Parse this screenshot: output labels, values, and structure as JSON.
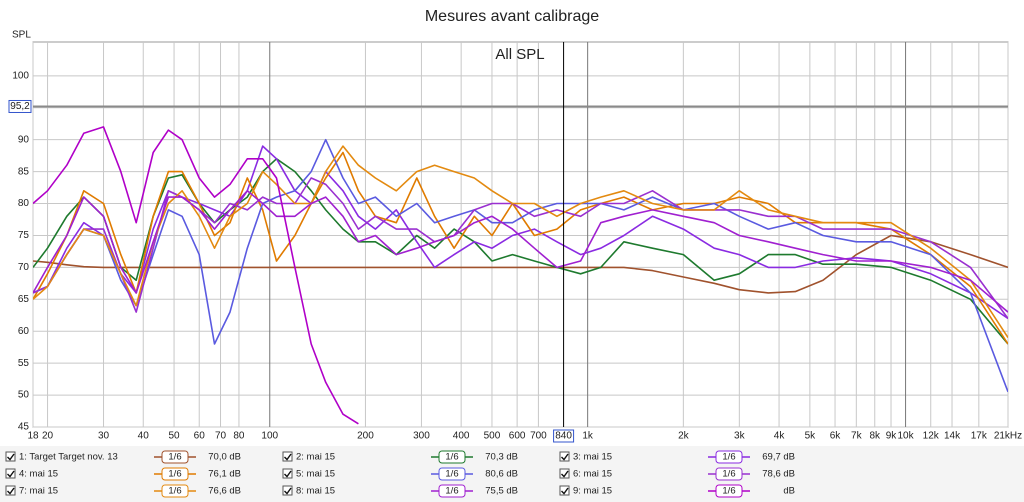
{
  "chart_data": {
    "type": "line",
    "title": "Mesures avant calibrage",
    "y_label": "SPL",
    "annotation": "All SPL",
    "log_x": true,
    "grid": true,
    "xlim": [
      18,
      21000
    ],
    "ylim": [
      45,
      105.3
    ],
    "xticks": [
      18,
      20,
      30,
      40,
      50,
      60,
      70,
      80,
      100,
      200,
      300,
      400,
      500,
      600,
      700,
      {
        "value": 1000,
        "label": "1k"
      },
      {
        "value": 2000,
        "label": "2k"
      },
      {
        "value": 3000,
        "label": "3k"
      },
      {
        "value": 4000,
        "label": "4k"
      },
      {
        "value": 5000,
        "label": "5k"
      },
      {
        "value": 6000,
        "label": "6k"
      },
      {
        "value": 7000,
        "label": "7k"
      },
      {
        "value": 8000,
        "label": "8k"
      },
      {
        "value": 9000,
        "label": "9k"
      },
      {
        "value": 10000,
        "label": "10k"
      },
      {
        "value": 12000,
        "label": "12k"
      },
      {
        "value": 14000,
        "label": "14k"
      },
      {
        "value": 17000,
        "label": "17k"
      },
      {
        "value": 21000,
        "label": "21kHz"
      }
    ],
    "yticks": [
      45,
      50,
      55,
      60,
      65,
      70,
      75,
      80,
      85,
      90,
      95,
      100
    ],
    "cursor_x": {
      "value": 840,
      "label": "840"
    },
    "cursor_y": {
      "value": 95.2,
      "label": "95,2"
    },
    "x": [
      18,
      20,
      23,
      26,
      30,
      34,
      38,
      43,
      48,
      53,
      60,
      67,
      75,
      85,
      95,
      105,
      120,
      135,
      150,
      170,
      190,
      215,
      250,
      290,
      330,
      380,
      440,
      500,
      580,
      680,
      800,
      950,
      1100,
      1300,
      1600,
      2000,
      2500,
      3000,
      3700,
      4500,
      5500,
      7000,
      9000,
      12000,
      16000,
      21000
    ],
    "series": [
      {
        "name": "1: Target Target nov. 13",
        "color": "#a0522d",
        "smoothing": "1/6",
        "level": "70,0 dB",
        "values": [
          71,
          70.8,
          70.4,
          70.1,
          70,
          70,
          70,
          70,
          70,
          70,
          70,
          70,
          70,
          70,
          70,
          70,
          70,
          70,
          70,
          70,
          70,
          70,
          70,
          70,
          70,
          70,
          70,
          70,
          70,
          70,
          70,
          70,
          70,
          70,
          69.5,
          68.5,
          67.5,
          66.5,
          66,
          66.2,
          68,
          72,
          75,
          74,
          72,
          70
        ]
      },
      {
        "name": "2: mai 15",
        "color": "#1e7a2e",
        "smoothing": "1/6",
        "level": "70,3 dB",
        "values": [
          70,
          73,
          78,
          81,
          78,
          70,
          68,
          78,
          84,
          84.5,
          80,
          77,
          79,
          81,
          85,
          87,
          85,
          82,
          79,
          76,
          74,
          74,
          72,
          75,
          73,
          76,
          74,
          71,
          72,
          71,
          70,
          69,
          70,
          74,
          73,
          72,
          68,
          69,
          72,
          72,
          70.5,
          70.5,
          70,
          68,
          65,
          58
        ]
      },
      {
        "name": "3: mai 15",
        "color": "#8a2be2",
        "smoothing": "1/6",
        "level": "69,7 dB",
        "values": [
          66,
          67,
          73,
          77,
          75,
          69,
          66,
          76,
          82,
          81,
          80,
          79,
          78,
          82,
          89,
          87,
          82,
          80,
          85,
          82,
          78,
          76,
          79,
          74,
          70,
          72,
          74,
          73,
          75,
          76,
          74,
          72,
          73,
          75,
          78,
          76,
          73,
          72,
          70,
          70,
          71,
          71.5,
          71,
          69,
          66,
          62
        ]
      },
      {
        "name": "4: mai 15",
        "color": "#e07b00",
        "smoothing": "1/6",
        "level": "76,1 dB",
        "values": [
          65,
          69,
          75,
          82,
          80,
          72,
          66,
          78,
          85,
          85,
          80,
          75,
          77,
          84,
          79,
          71,
          75,
          80,
          84,
          88,
          82,
          78,
          77,
          84,
          78,
          73,
          78,
          75,
          80,
          75,
          76,
          79,
          80,
          81,
          79,
          80,
          80,
          81,
          80,
          77,
          77,
          77,
          76,
          72,
          67,
          58
        ]
      },
      {
        "name": "5: mai 15",
        "color": "#5a5ae0",
        "smoothing": "1/6",
        "level": "80,6 dB",
        "values": [
          66,
          67,
          72,
          76,
          75,
          68,
          64,
          72,
          79,
          78,
          72,
          58,
          63,
          73,
          80,
          81,
          82,
          85,
          90,
          84,
          80,
          81,
          78,
          80,
          77,
          78,
          79,
          77,
          77,
          79,
          80,
          80,
          80,
          79,
          81,
          79,
          80,
          78,
          76,
          77,
          75,
          74,
          74,
          72,
          66,
          50.5
        ]
      },
      {
        "name": "6: mai 15",
        "color": "#9a30d0",
        "smoothing": "1/6",
        "level": "78,6 dB",
        "values": [
          66,
          67,
          72,
          76,
          76,
          69,
          63,
          73,
          82,
          81,
          79,
          77,
          80,
          79,
          81,
          80,
          80,
          84,
          83,
          80,
          76,
          78,
          76,
          76,
          74,
          75,
          79,
          80,
          80,
          78,
          79,
          78,
          80,
          80,
          82,
          79,
          79,
          79,
          78,
          78,
          76,
          76,
          76,
          74,
          70,
          62
        ]
      },
      {
        "name": "7: mai 15",
        "color": "#e38a10",
        "smoothing": "1/6",
        "level": "76,6 dB",
        "values": [
          65,
          67,
          72,
          76,
          75,
          69,
          64,
          74,
          80,
          82,
          78,
          73,
          78,
          80,
          85,
          83,
          80,
          80,
          85,
          89,
          86,
          84,
          82,
          85,
          86,
          85,
          84,
          82,
          80,
          80,
          78,
          80,
          81,
          82,
          80,
          79,
          79,
          82,
          79,
          78,
          77,
          77,
          77,
          73,
          68,
          59
        ]
      },
      {
        "name": "8: mai 15",
        "color": "#a020d0",
        "smoothing": "1/6",
        "level": "75,5 dB",
        "values": [
          66,
          70,
          75,
          81,
          78,
          70,
          66,
          74,
          81,
          81,
          79,
          76,
          79,
          82,
          80,
          78,
          78,
          80,
          81,
          78,
          74,
          75,
          72,
          73,
          74,
          75,
          77,
          78,
          76,
          73,
          70,
          71,
          77,
          78,
          79,
          78,
          77,
          75,
          74,
          73,
          72,
          71,
          71,
          70,
          68,
          63
        ]
      },
      {
        "name": "9: mai 15",
        "color": "#b000c8",
        "smoothing": "1/6",
        "level": "dB",
        "values": [
          80,
          82,
          86,
          91,
          92,
          85,
          77,
          88,
          91.5,
          90,
          84,
          81,
          83,
          87,
          87,
          84,
          70,
          58,
          52,
          47,
          45.5,
          null,
          null,
          null,
          null,
          null,
          null,
          null,
          null,
          null,
          null,
          null,
          null,
          null,
          null,
          null,
          null,
          null,
          null,
          null,
          null,
          null,
          null,
          null,
          null,
          null
        ]
      }
    ]
  }
}
